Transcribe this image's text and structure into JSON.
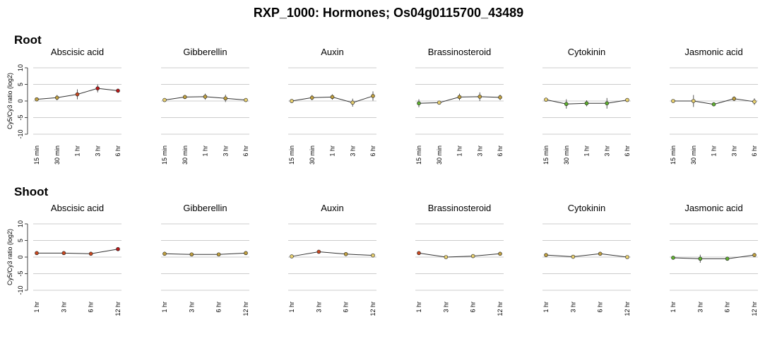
{
  "title": "RXP_1000: Hormones; Os04g0115700_43489",
  "sections": [
    {
      "label": "Root"
    },
    {
      "label": "Shoot"
    }
  ],
  "colors": {
    "grid": "#cccccc",
    "axis": "#444444",
    "line": "#333333",
    "error_bar": "#555555",
    "point_neutral": "#e8d070",
    "point_up": "#b81818",
    "point_up_mid": "#c84820",
    "point_mild": "#c0a040",
    "point_down": "#60b030"
  },
  "chart_data": [
    {
      "type": "line",
      "section": "Root",
      "title": "Abscisic acid",
      "ylabel": "Cy5/Cy3 ratio (log2)",
      "ylim": [
        -10,
        10
      ],
      "yticks": [
        10,
        5,
        0,
        -5,
        -10
      ],
      "categories": [
        "15 min",
        "30 min",
        "1 hr",
        "3 hr",
        "6 hr"
      ],
      "values": [
        0.5,
        1.0,
        2.0,
        3.8,
        3.1
      ],
      "errors": [
        0.5,
        0.8,
        1.5,
        1.2,
        0.6
      ],
      "point_colors": [
        "#c0a040",
        "#c0a040",
        "#c84820",
        "#b81818",
        "#b81818"
      ]
    },
    {
      "type": "line",
      "section": "Root",
      "title": "Gibberellin",
      "ylim": [
        -10,
        10
      ],
      "categories": [
        "15 min",
        "30 min",
        "1 hr",
        "3 hr",
        "6 hr"
      ],
      "values": [
        0.3,
        1.2,
        1.3,
        0.8,
        0.3
      ],
      "errors": [
        0.4,
        0.6,
        0.9,
        1.1,
        0.4
      ],
      "point_colors": [
        "#e8d070",
        "#c0a040",
        "#c0a040",
        "#c0a040",
        "#e8d070"
      ]
    },
    {
      "type": "line",
      "section": "Root",
      "title": "Auxin",
      "ylim": [
        -10,
        10
      ],
      "categories": [
        "15 min",
        "30 min",
        "1 hr",
        "3 hr",
        "6 hr"
      ],
      "values": [
        0.0,
        1.0,
        1.2,
        -0.5,
        1.5
      ],
      "errors": [
        0.6,
        0.8,
        0.8,
        1.2,
        1.4
      ],
      "point_colors": [
        "#e8d070",
        "#c0a040",
        "#c0a040",
        "#e8d070",
        "#c0a040"
      ]
    },
    {
      "type": "line",
      "section": "Root",
      "title": "Brassinosteroid",
      "ylim": [
        -10,
        10
      ],
      "categories": [
        "15 min",
        "30 min",
        "1 hr",
        "3 hr",
        "6 hr"
      ],
      "values": [
        -0.7,
        -0.5,
        1.2,
        1.3,
        1.1
      ],
      "errors": [
        1.2,
        0.5,
        1.0,
        1.3,
        0.8
      ],
      "point_colors": [
        "#60b030",
        "#e8d070",
        "#c0a040",
        "#c0a040",
        "#c0a040"
      ]
    },
    {
      "type": "line",
      "section": "Root",
      "title": "Cytokinin",
      "ylim": [
        -10,
        10
      ],
      "categories": [
        "15 min",
        "30 min",
        "1 hr",
        "3 hr",
        "6 hr"
      ],
      "values": [
        0.4,
        -0.9,
        -0.7,
        -0.7,
        0.3
      ],
      "errors": [
        0.6,
        1.4,
        0.9,
        1.6,
        0.5
      ],
      "point_colors": [
        "#e8d070",
        "#60b030",
        "#60b030",
        "#60b030",
        "#e8d070"
      ]
    },
    {
      "type": "line",
      "section": "Root",
      "title": "Jasmonic acid",
      "ylim": [
        -10,
        10
      ],
      "categories": [
        "15 min",
        "30 min",
        "1 hr",
        "3 hr",
        "6 hr"
      ],
      "values": [
        0.0,
        0.0,
        -1.0,
        0.7,
        -0.2
      ],
      "errors": [
        0.5,
        1.8,
        0.6,
        0.7,
        1.0
      ],
      "point_colors": [
        "#e8d070",
        "#e8d070",
        "#60b030",
        "#c0a040",
        "#e8d070"
      ]
    },
    {
      "type": "line",
      "section": "Shoot",
      "title": "Abscisic acid",
      "ylabel": "Cy5/Cy3 ratio (log2)",
      "ylim": [
        -10,
        10
      ],
      "yticks": [
        10,
        5,
        0,
        -5,
        -10
      ],
      "categories": [
        "1 hr",
        "3 hr",
        "6 hr",
        "12 hr"
      ],
      "values": [
        1.2,
        1.2,
        1.0,
        2.4
      ],
      "errors": [
        0.3,
        0.4,
        0.3,
        0.4
      ],
      "point_colors": [
        "#c84820",
        "#c84820",
        "#c84820",
        "#b81818"
      ]
    },
    {
      "type": "line",
      "section": "Shoot",
      "title": "Gibberellin",
      "ylim": [
        -10,
        10
      ],
      "categories": [
        "1 hr",
        "3 hr",
        "6 hr",
        "12 hr"
      ],
      "values": [
        1.0,
        0.8,
        0.8,
        1.2
      ],
      "errors": [
        0.3,
        0.3,
        0.4,
        0.3
      ],
      "point_colors": [
        "#c0a040",
        "#c0a040",
        "#c0a040",
        "#c0a040"
      ]
    },
    {
      "type": "line",
      "section": "Shoot",
      "title": "Auxin",
      "ylim": [
        -10,
        10
      ],
      "categories": [
        "1 hr",
        "3 hr",
        "6 hr",
        "12 hr"
      ],
      "values": [
        0.2,
        1.6,
        0.9,
        0.5
      ],
      "errors": [
        0.3,
        0.4,
        0.3,
        0.3
      ],
      "point_colors": [
        "#e8d070",
        "#c84820",
        "#c0a040",
        "#e8d070"
      ]
    },
    {
      "type": "line",
      "section": "Shoot",
      "title": "Brassinosteroid",
      "ylim": [
        -10,
        10
      ],
      "categories": [
        "1 hr",
        "3 hr",
        "6 hr",
        "12 hr"
      ],
      "values": [
        1.2,
        0.0,
        0.3,
        1.0
      ],
      "errors": [
        0.3,
        0.3,
        0.3,
        0.3
      ],
      "point_colors": [
        "#c84820",
        "#e8d070",
        "#e8d070",
        "#c0a040"
      ]
    },
    {
      "type": "line",
      "section": "Shoot",
      "title": "Cytokinin",
      "ylim": [
        -10,
        10
      ],
      "categories": [
        "1 hr",
        "3 hr",
        "6 hr",
        "12 hr"
      ],
      "values": [
        0.6,
        0.1,
        1.0,
        0.0
      ],
      "errors": [
        0.3,
        0.3,
        0.3,
        0.3
      ],
      "point_colors": [
        "#c0a040",
        "#e8d070",
        "#c0a040",
        "#e8d070"
      ]
    },
    {
      "type": "line",
      "section": "Shoot",
      "title": "Jasmonic acid",
      "ylim": [
        -10,
        10
      ],
      "categories": [
        "1 hr",
        "3 hr",
        "6 hr",
        "12 hr"
      ],
      "values": [
        -0.2,
        -0.5,
        -0.5,
        0.6
      ],
      "errors": [
        0.3,
        1.2,
        0.4,
        0.6
      ],
      "point_colors": [
        "#60b030",
        "#60b030",
        "#60b030",
        "#c0a040"
      ]
    }
  ]
}
